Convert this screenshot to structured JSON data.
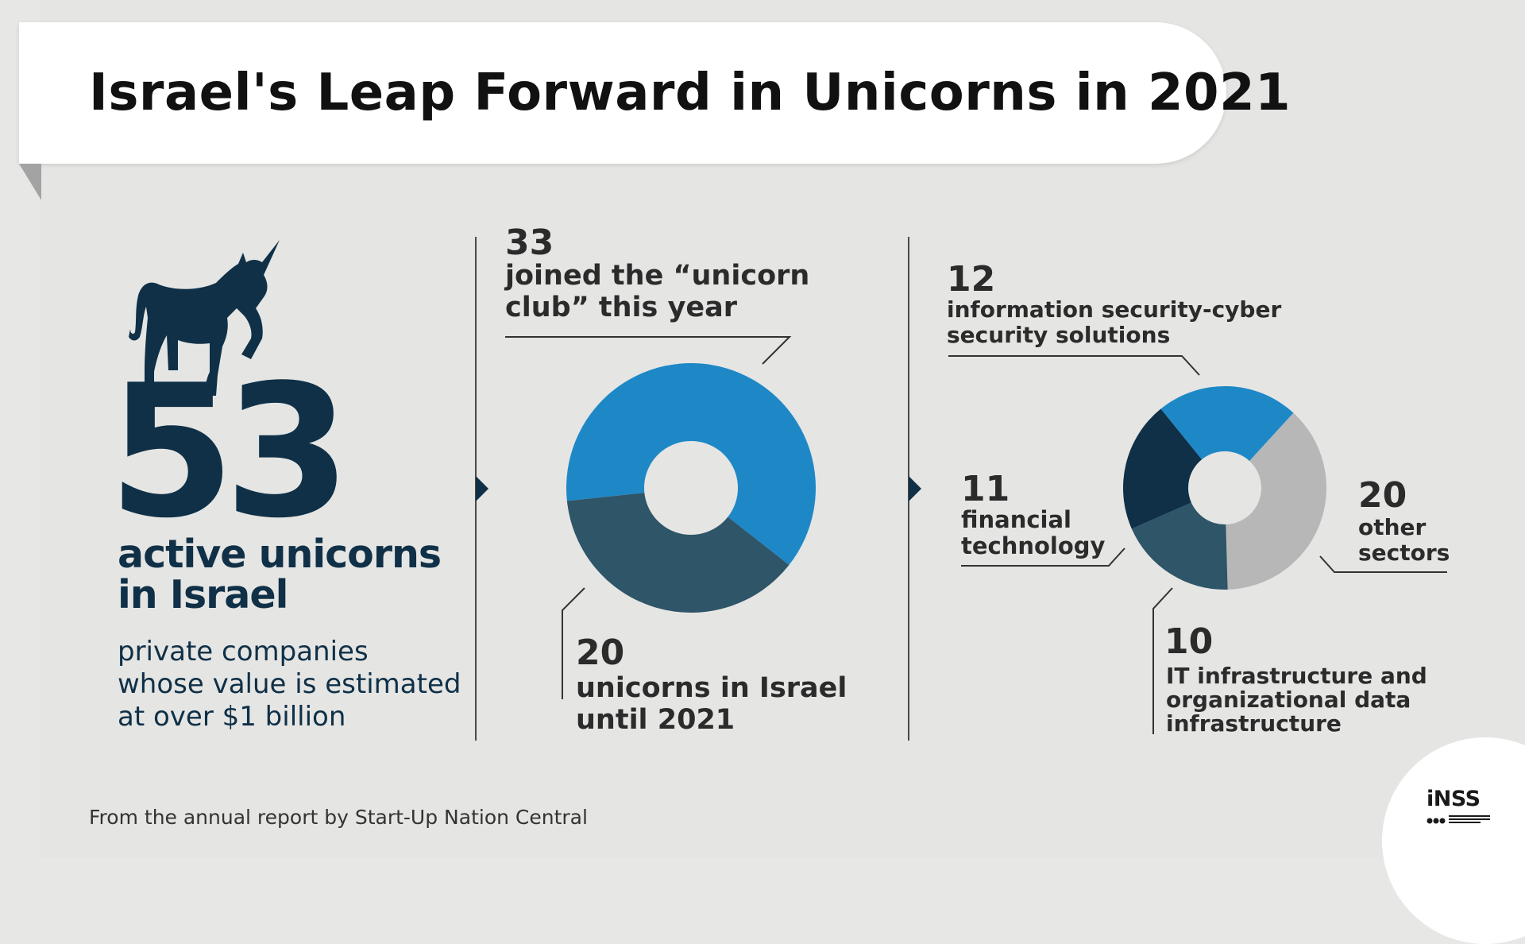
{
  "title": "Israel's Leap Forward in Unicorns in 2021",
  "left_panel": {
    "number": "53",
    "heading_line1": "active unicorns",
    "heading_line2": "in Israel",
    "desc_line1": "private companies",
    "desc_line2": "whose value is estimated",
    "desc_line3": "at over $1 billion"
  },
  "middle_panel": {
    "top_number": "33",
    "top_label_line1": "joined the “unicorn",
    "top_label_line2": "club” this year",
    "bottom_number": "20",
    "bottom_label_line1": "unicorns in Israel",
    "bottom_label_line2": "until 2021"
  },
  "right_panel": {
    "cyber_number": "12",
    "cyber_label_line1": "information security-cyber",
    "cyber_label_line2": "security solutions",
    "fintech_number": "11",
    "fintech_label_line1": "financial",
    "fintech_label_line2": "technology",
    "other_number": "20",
    "other_label_line1": "other",
    "other_label_line2": "sectors",
    "it_number": "10",
    "it_label_line1": "IT infrastructure and",
    "it_label_line2": "organizational data",
    "it_label_line3": "infrastructure"
  },
  "source": "From the annual report by Start-Up Nation Central",
  "logo": "iNSS",
  "colors": {
    "light_blue": "#1e88c7",
    "slate": "#2e5568",
    "navy": "#0f3047",
    "gray": "#b7b7b7",
    "text_dark": "#0f3047"
  },
  "chart_data": [
    {
      "type": "pie",
      "donut": true,
      "slices": [
        {
          "label": "joined the “unicorn club” this year",
          "value": 33,
          "color": "#1e88c7"
        },
        {
          "label": "unicorns in Israel until 2021",
          "value": 20,
          "color": "#2e5568"
        }
      ]
    },
    {
      "type": "pie",
      "donut": true,
      "slices": [
        {
          "label": "information security-cyber security solutions",
          "value": 12,
          "color": "#1e88c7"
        },
        {
          "label": "other sectors",
          "value": 20,
          "color": "#b7b7b7"
        },
        {
          "label": "IT infrastructure and organizational data infrastructure",
          "value": 10,
          "color": "#2e5568"
        },
        {
          "label": "financial technology",
          "value": 11,
          "color": "#0f3047"
        }
      ]
    }
  ]
}
